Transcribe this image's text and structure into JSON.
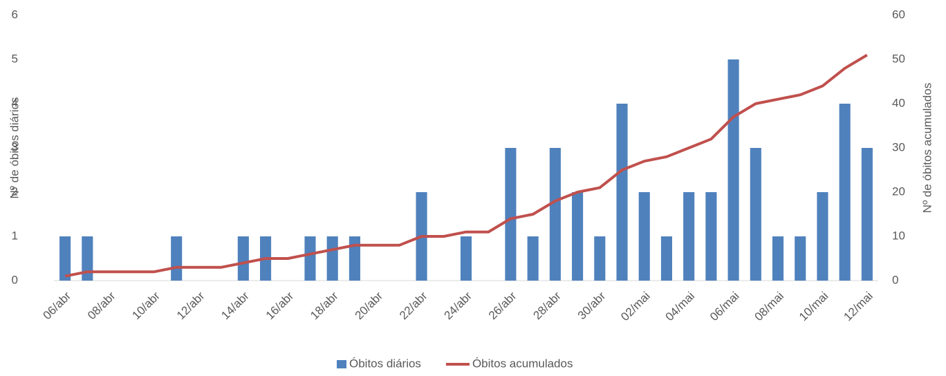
{
  "chart_data": {
    "type": "bar-line",
    "ylabel": "Nº de óbitos diários",
    "y2label": "Nº de óbitos acumulados",
    "categories": [
      "06/abr",
      null,
      "08/abr",
      null,
      "10/abr",
      null,
      "12/abr",
      null,
      "14/abr",
      null,
      "16/abr",
      null,
      "18/abr",
      null,
      "20/abr",
      null,
      "22/abr",
      null,
      "24/abr",
      null,
      "26/abr",
      null,
      "28/abr",
      null,
      "30/abr",
      null,
      "02/mai",
      null,
      "04/mai",
      null,
      "06/mai",
      null,
      "08/mai",
      null,
      "10/mai",
      null,
      "12/mai"
    ],
    "series": [
      {
        "name": "Óbitos diários",
        "type": "bar",
        "color": "#4f81bd",
        "axis": "y",
        "values": [
          1,
          1,
          0,
          0,
          0,
          1,
          0,
          0,
          1,
          1,
          0,
          1,
          1,
          1,
          0,
          0,
          2,
          0,
          1,
          0,
          3,
          1,
          3,
          2,
          1,
          4,
          2,
          1,
          2,
          2,
          5,
          3,
          1,
          1,
          2,
          4,
          3
        ]
      },
      {
        "name": "Óbitos acumulados",
        "type": "line",
        "color": "#c0504d",
        "axis": "y2",
        "values": [
          1,
          2,
          2,
          2,
          2,
          3,
          3,
          3,
          4,
          5,
          5,
          6,
          7,
          8,
          8,
          8,
          10,
          10,
          11,
          11,
          14,
          15,
          18,
          20,
          21,
          25,
          27,
          28,
          30,
          32,
          37,
          40,
          41,
          42,
          44,
          48,
          51
        ]
      }
    ],
    "ylim": [
      0,
      6
    ],
    "yticks": [
      0,
      1,
      2,
      3,
      4,
      5,
      6
    ],
    "y2lim": [
      0,
      60
    ],
    "y2ticks": [
      0,
      10,
      20,
      30,
      40,
      50,
      60
    ],
    "legend": "bottom"
  }
}
